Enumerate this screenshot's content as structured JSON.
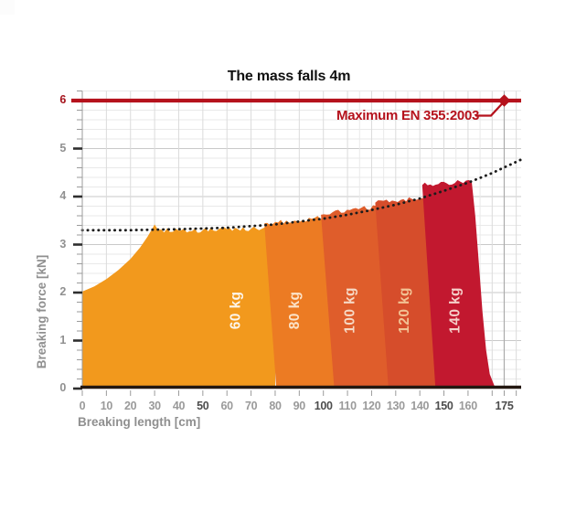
{
  "page": {
    "title": "The mass falls 4m"
  },
  "chart_data": {
    "type": "area",
    "title": "The mass falls 4m",
    "xlabel": "Breaking length [cm]",
    "ylabel": "Breaking force [kN]",
    "xlim": [
      0,
      182
    ],
    "ylim": [
      0,
      6.2
    ],
    "grid": true,
    "x_ticks": [
      0,
      10,
      20,
      30,
      40,
      50,
      60,
      70,
      80,
      90,
      100,
      110,
      120,
      130,
      140,
      150,
      160,
      175
    ],
    "x_ticks_bold": [
      50,
      100,
      150,
      175
    ],
    "x_extra_tickmarks": [
      170,
      180
    ],
    "y_ticks": [
      0,
      1,
      2,
      3,
      4,
      5,
      6
    ],
    "y_tick_red": 6,
    "max_line": {
      "value": 6,
      "label": "Maximum EN 355:2003",
      "color": "#B5121C",
      "marker_x": 175
    },
    "dotted_curve": {
      "color": "#1c1c1c",
      "points": [
        [
          0,
          3.3
        ],
        [
          20,
          3.3
        ],
        [
          40,
          3.32
        ],
        [
          60,
          3.35
        ],
        [
          80,
          3.42
        ],
        [
          100,
          3.54
        ],
        [
          110,
          3.62
        ],
        [
          120,
          3.72
        ],
        [
          130,
          3.83
        ],
        [
          140,
          3.96
        ],
        [
          150,
          4.12
        ],
        [
          160,
          4.29
        ],
        [
          170,
          4.49
        ],
        [
          182,
          4.77
        ]
      ]
    },
    "series": [
      {
        "name": "60 kg",
        "color": "#F2991D",
        "label_color": "#FDF6EC",
        "label_x": 63.5,
        "outline": [
          [
            0,
            0
          ],
          [
            0,
            2.02
          ],
          [
            5,
            2.13
          ],
          [
            10,
            2.28
          ],
          [
            15,
            2.47
          ],
          [
            20,
            2.7
          ],
          [
            24,
            2.94
          ],
          [
            27,
            3.16
          ],
          [
            29,
            3.33
          ],
          [
            30,
            3.42
          ],
          [
            31.5,
            3.3
          ],
          [
            40,
            3.29
          ],
          [
            50,
            3.3
          ],
          [
            60,
            3.32
          ],
          [
            70,
            3.33
          ],
          [
            80,
            3.35
          ],
          [
            80,
            0
          ]
        ],
        "jag": [
          10,
          15
        ]
      },
      {
        "name": "80 kg",
        "color": "#EC7B23",
        "label_color": "#FBE3C9",
        "label_x": 88,
        "outline": [
          [
            80.5,
            0
          ],
          [
            75.5,
            3.44
          ],
          [
            88,
            3.5
          ],
          [
            100,
            3.56
          ],
          [
            105.5,
            0
          ]
        ],
        "jag": [
          1,
          3
        ]
      },
      {
        "name": "100 kg",
        "color": "#DF5D2B",
        "label_color": "#F6D8C4",
        "label_x": 111,
        "outline": [
          [
            104.5,
            0
          ],
          [
            99,
            3.62
          ],
          [
            111,
            3.72
          ],
          [
            123,
            3.8
          ],
          [
            129,
            0
          ]
        ],
        "jag": [
          1,
          3
        ]
      },
      {
        "name": "120 kg",
        "color": "#D64D2B",
        "label_color": "#F2C294",
        "label_x": 133.5,
        "outline": [
          [
            127,
            0
          ],
          [
            121.5,
            3.87
          ],
          [
            132,
            3.93
          ],
          [
            142.5,
            3.99
          ],
          [
            148.5,
            0
          ]
        ],
        "jag": [
          1,
          3
        ]
      },
      {
        "name": "140 kg",
        "color": "#C2182F",
        "label_color": "#F5CFC9",
        "label_x": 154.5,
        "outline": [
          [
            146.5,
            0
          ],
          [
            141,
            4.24
          ],
          [
            151,
            4.28
          ],
          [
            161.5,
            4.32
          ],
          [
            163,
            3.6
          ],
          [
            164.5,
            2.6
          ],
          [
            166,
            1.6
          ],
          [
            167.5,
            0.8
          ],
          [
            169,
            0.3
          ],
          [
            171,
            0.05
          ],
          [
            172.5,
            0
          ]
        ],
        "jag": [
          1,
          3
        ]
      }
    ],
    "series_label_y": 1.63,
    "colors": {
      "max_red": "#B5121C",
      "baseline": "#231711",
      "grid_minor": "#e9e9e9",
      "grid_major": "#c9c9c9",
      "grid_vert": "#dbdbdb",
      "grid_vert_175": "#ababab",
      "axis_gray": "#9b9b9b",
      "tick_dark": "#2e2e2e"
    }
  }
}
